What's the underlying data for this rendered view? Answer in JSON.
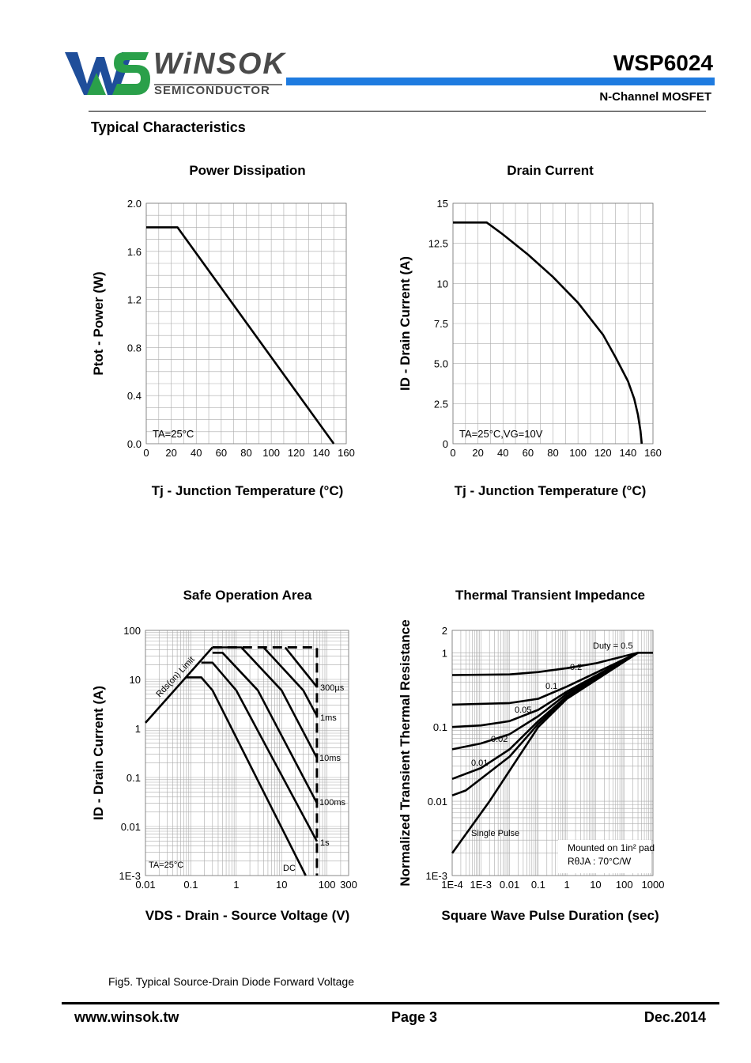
{
  "header": {
    "logo_text": "WiNSOK",
    "logo_sub": "SEMICONDUCTOR",
    "part_number": "WSP6024",
    "device_type": "N-Channel MOSFET",
    "colors": {
      "brand_blue": "#1f4e9a",
      "brand_green": "#2aa04a",
      "accent_bar": "#1e7be0",
      "logo_gray": "#4a4a4a"
    }
  },
  "section_title": "Typical Characteristics",
  "fig_caption": "Fig5. Typical Source-Drain Diode Forward Voltage",
  "footer": {
    "website": "www.winsok.tw",
    "page": "Page  3",
    "date": "Dec.2014"
  },
  "chart_data": [
    {
      "type": "line",
      "title": "Power Dissipation",
      "xlabel": "Tj - Junction Temperature (°C)",
      "ylabel": "Ptot - Power (W)",
      "xscale": "linear",
      "yscale": "linear",
      "xlim": [
        0,
        160
      ],
      "ylim": [
        0,
        2.0
      ],
      "xticks": [
        "0",
        "20",
        "40",
        "60",
        "80",
        "100",
        "120",
        "140",
        "160"
      ],
      "yticks": [
        "0.0",
        "0.4",
        "0.8",
        "1.2",
        "1.6",
        "2.0"
      ],
      "grid": true,
      "annotation": "TA=25°C",
      "series": [
        {
          "points": [
            [
              0,
              1.8
            ],
            [
              25,
              1.8
            ],
            [
              150,
              0
            ]
          ]
        }
      ]
    },
    {
      "type": "line",
      "title": "Drain Current",
      "xlabel": "Tj - Junction Temperature (°C)",
      "ylabel": "ID - Drain Current (A)",
      "xscale": "linear",
      "yscale": "linear",
      "xlim": [
        0,
        160
      ],
      "ylim": [
        0,
        15
      ],
      "xticks": [
        "0",
        "20",
        "40",
        "60",
        "80",
        "100",
        "120",
        "140",
        "160"
      ],
      "yticks": [
        "0",
        "2.5",
        "5.0",
        "7.5",
        "10",
        "12.5",
        "15"
      ],
      "grid": true,
      "annotation": "TA=25°C,VG=10V",
      "series": [
        {
          "points": [
            [
              0,
              13.8
            ],
            [
              27,
              13.8
            ],
            [
              40,
              13.05
            ],
            [
              60,
              11.8
            ],
            [
              80,
              10.4
            ],
            [
              100,
              8.8
            ],
            [
              120,
              6.8
            ],
            [
              130,
              5.4
            ],
            [
              140,
              3.9
            ],
            [
              145,
              2.8
            ],
            [
              148,
              1.8
            ],
            [
              150,
              0.8
            ],
            [
              151,
              0
            ]
          ]
        }
      ]
    },
    {
      "type": "line",
      "title": "Safe Operation Area",
      "xlabel": "VDS - Drain - Source Voltage (V)",
      "ylabel": "ID - Drain Current (A)",
      "xscale": "log",
      "yscale": "log",
      "xlim": [
        0.01,
        300
      ],
      "ylim": [
        0.001,
        100
      ],
      "xticks": [
        "0.01",
        "0.1",
        "1",
        "10",
        "100",
        "300"
      ],
      "yticks": [
        "1E-3",
        "0.01",
        "0.1",
        "1",
        "10",
        "100"
      ],
      "grid": true,
      "annotation": "TA=25°C",
      "series": [
        {
          "name": "Rds(on) Limit",
          "points": [
            [
              0.01,
              1.3
            ],
            [
              0.3,
              45
            ]
          ]
        },
        {
          "name": "DC",
          "points": [
            [
              0.08,
              11
            ],
            [
              0.17,
              11
            ],
            [
              0.3,
              6
            ],
            [
              34,
              0.001
            ]
          ]
        },
        {
          "name": "1s",
          "points": [
            [
              0.17,
              22
            ],
            [
              0.3,
              22
            ],
            [
              1,
              6
            ],
            [
              60,
              0.005
            ]
          ]
        },
        {
          "name": "100ms",
          "points": [
            [
              0.3,
              35
            ],
            [
              0.5,
              35
            ],
            [
              3,
              6
            ],
            [
              60,
              0.03
            ]
          ]
        },
        {
          "name": "10ms",
          "points": [
            [
              0.3,
              45
            ],
            [
              1.3,
              45
            ],
            [
              10,
              6
            ],
            [
              60,
              0.25
            ]
          ]
        },
        {
          "name": "1ms",
          "points": [
            [
              4,
              45
            ],
            [
              30,
              6
            ],
            [
              60,
              1.8
            ]
          ]
        },
        {
          "name": "300µs",
          "points": [
            [
              12,
              45
            ],
            [
              60,
              7
            ]
          ]
        },
        {
          "name": "limit",
          "dashed": true,
          "points": [
            [
              0.3,
              45
            ],
            [
              60,
              45
            ],
            [
              60,
              0.001
            ]
          ]
        }
      ]
    },
    {
      "type": "line",
      "title": "Thermal Transient Impedance",
      "xlabel": "Square Wave Pulse Duration (sec)",
      "ylabel": "Normalized Transient Thermal Resistance",
      "xscale": "log",
      "yscale": "log",
      "xlim": [
        0.0001,
        1000
      ],
      "ylim": [
        0.001,
        2
      ],
      "xticks": [
        "1E-4",
        "1E-3",
        "0.01",
        "0.1",
        "1",
        "10",
        "100",
        "1000"
      ],
      "yticks": [
        "1E-3",
        "0.01",
        "0.1",
        "1",
        "2"
      ],
      "grid": true,
      "annotation": "Mounted on 1in² pad",
      "annotation2": "RθJA : 70°C/W",
      "series": [
        {
          "name": "Duty = 0.5",
          "points": [
            [
              0.0001,
              0.5
            ],
            [
              0.01,
              0.51
            ],
            [
              0.1,
              0.55
            ],
            [
              1,
              0.62
            ],
            [
              10,
              0.72
            ],
            [
              300,
              1
            ],
            [
              1000,
              1
            ]
          ]
        },
        {
          "name": "0.2",
          "points": [
            [
              0.0001,
              0.2
            ],
            [
              0.01,
              0.21
            ],
            [
              0.1,
              0.24
            ],
            [
              1,
              0.35
            ],
            [
              300,
              1
            ]
          ]
        },
        {
          "name": "0.1",
          "points": [
            [
              0.0001,
              0.1
            ],
            [
              0.001,
              0.105
            ],
            [
              0.01,
              0.12
            ],
            [
              0.1,
              0.17
            ],
            [
              1,
              0.3
            ],
            [
              300,
              1
            ]
          ]
        },
        {
          "name": "0.05",
          "points": [
            [
              0.0001,
              0.05
            ],
            [
              0.001,
              0.06
            ],
            [
              0.01,
              0.08
            ],
            [
              0.1,
              0.14
            ],
            [
              1,
              0.28
            ],
            [
              300,
              1
            ]
          ]
        },
        {
          "name": "0.02",
          "points": [
            [
              0.0001,
              0.02
            ],
            [
              0.001,
              0.028
            ],
            [
              0.01,
              0.05
            ],
            [
              0.1,
              0.12
            ],
            [
              1,
              0.26
            ],
            [
              300,
              1
            ]
          ]
        },
        {
          "name": "0.01",
          "points": [
            [
              0.0001,
              0.012
            ],
            [
              0.0003,
              0.014
            ],
            [
              0.01,
              0.04
            ],
            [
              0.1,
              0.11
            ],
            [
              1,
              0.25
            ],
            [
              300,
              1
            ]
          ]
        },
        {
          "name": "Single Pulse",
          "points": [
            [
              0.0001,
              0.002
            ],
            [
              0.002,
              0.01
            ],
            [
              0.1,
              0.1
            ],
            [
              1,
              0.24
            ],
            [
              300,
              1
            ]
          ]
        }
      ]
    }
  ]
}
